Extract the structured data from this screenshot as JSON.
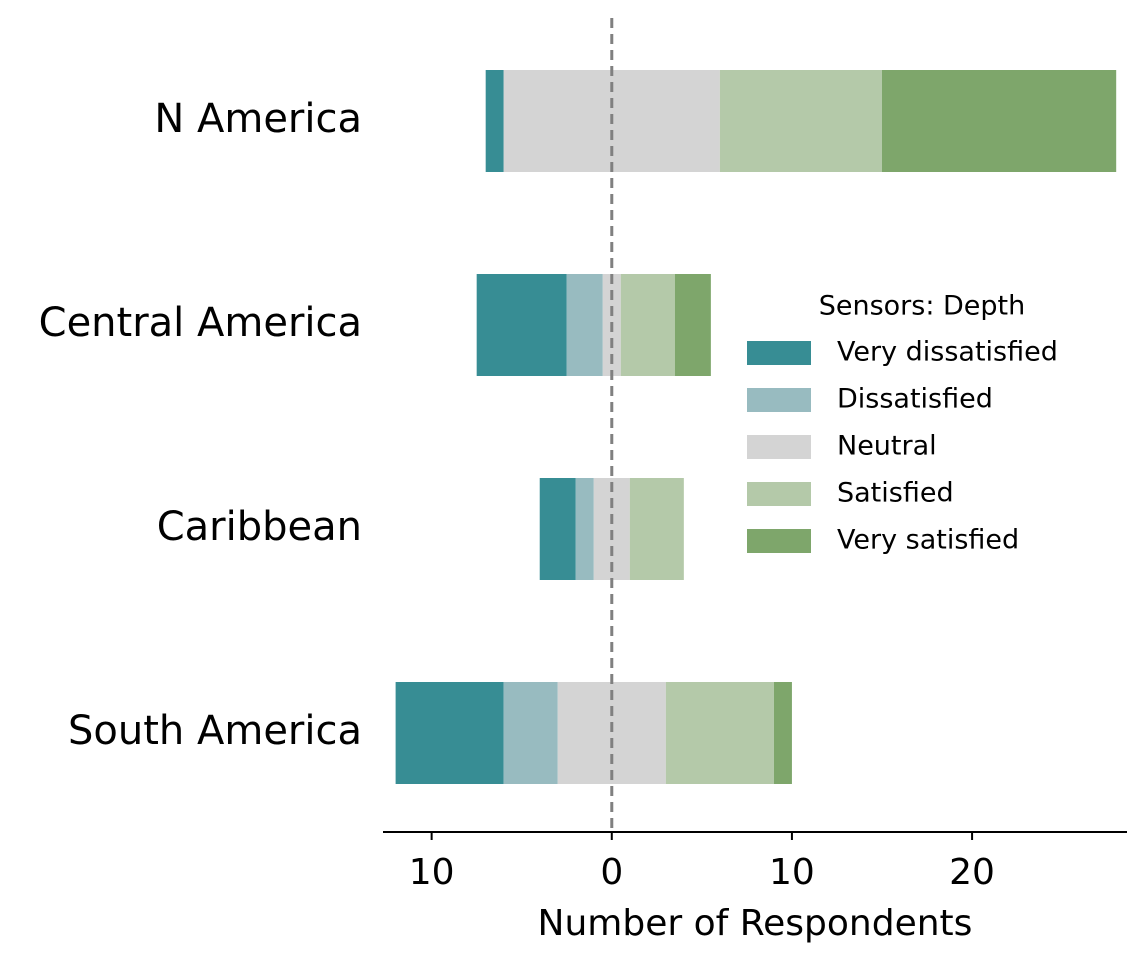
{
  "chart_data": {
    "type": "diverging_bar",
    "xlabel": "Number of Respondents",
    "legend_title": "Sensors: Depth",
    "categories": [
      "N America",
      "Central America",
      "Caribbean",
      "South America"
    ],
    "series": [
      {
        "name": "Very dissatisfied",
        "color": "#378d94",
        "values": [
          1,
          5,
          2,
          6
        ]
      },
      {
        "name": "Dissatisfied",
        "color": "#98bbc0",
        "values": [
          0,
          2,
          1,
          3
        ]
      },
      {
        "name": "Neutral",
        "color": "#d4d4d4",
        "values": [
          12,
          1,
          2,
          6
        ]
      },
      {
        "name": "Satisfied",
        "color": "#b4c9a9",
        "values": [
          9,
          3,
          3,
          6
        ]
      },
      {
        "name": "Very satisfied",
        "color": "#7ea66b",
        "values": [
          13,
          2,
          0,
          1
        ]
      }
    ],
    "xlim": [
      -12.7,
      28.6
    ],
    "xticks": [
      {
        "value": -10,
        "label": "10"
      },
      0,
      10,
      20
    ],
    "reference_line": 0
  }
}
